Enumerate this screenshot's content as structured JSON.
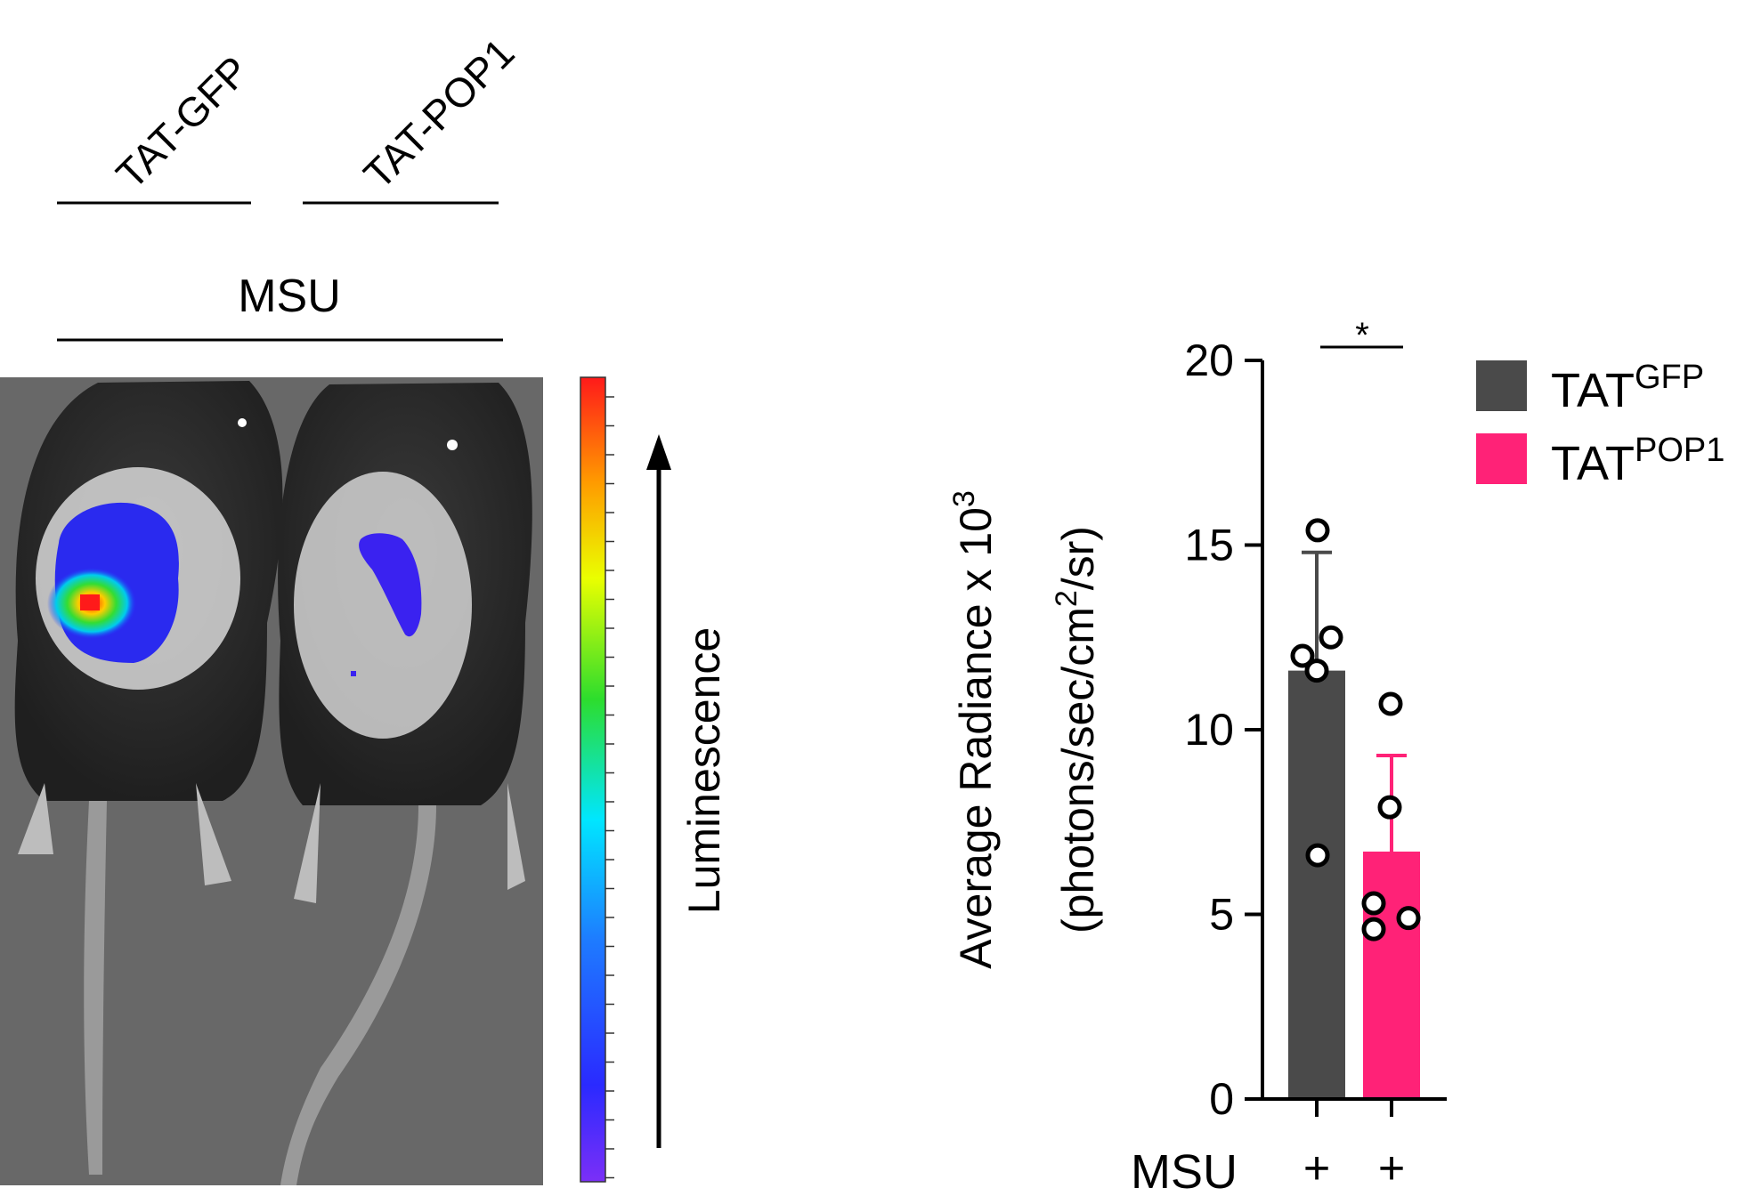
{
  "panel_left": {
    "group_labels": [
      "TAT-GFP",
      "TAT-POP1"
    ],
    "treatment_label": "MSU",
    "colorbar_label": "Luminescence"
  },
  "chart_data": {
    "type": "bar",
    "categories": [
      "TAT-GFP",
      "TAT-POP1"
    ],
    "series": [
      {
        "name": "TAT^GFP",
        "legend_base": "TAT",
        "legend_sup": "GFP",
        "color": "#4a4a4a",
        "mean": 11.6,
        "error_up": 14.8,
        "points": [
          15.4,
          12.0,
          12.5,
          11.6,
          6.6
        ]
      },
      {
        "name": "TAT^POP1",
        "legend_base": "TAT",
        "legend_sup": "POP1",
        "color": "#ff2277",
        "mean": 6.7,
        "error_up": 9.3,
        "points": [
          10.7,
          7.9,
          5.3,
          4.6,
          4.9
        ]
      }
    ],
    "ylabel_line1": "Average Radiance x 10",
    "ylabel_line1_sup": "3",
    "ylabel_line2_a": "(photons/sec/cm",
    "ylabel_line2_sup": "2",
    "ylabel_line2_b": "/sr)",
    "ylim": [
      0,
      20
    ],
    "yticks": [
      0,
      5,
      10,
      15,
      20
    ],
    "significance": "*",
    "x_row_label": "MSU",
    "x_row_values": [
      "+",
      "+"
    ],
    "legend_position": "top-right"
  }
}
